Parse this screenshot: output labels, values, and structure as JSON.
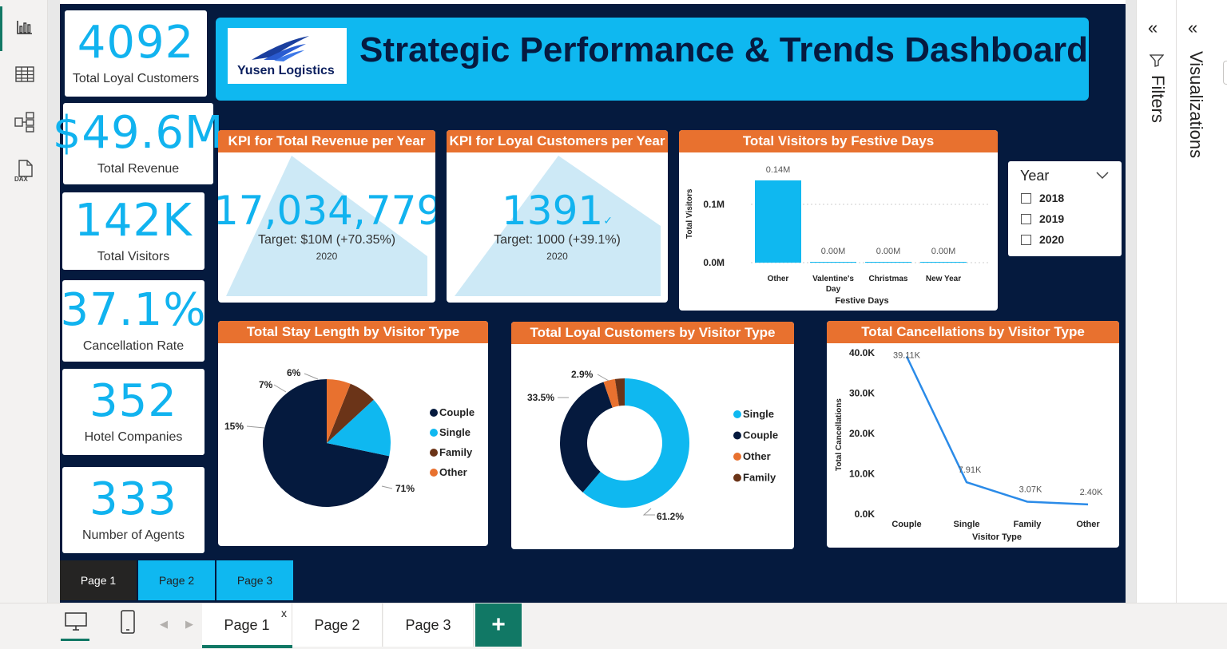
{
  "kpis": [
    {
      "value": "4092",
      "label": "Total Loyal Customers"
    },
    {
      "value": "$49.6M",
      "label": "Total Revenue"
    },
    {
      "value": "142K",
      "label": "Total Visitors"
    },
    {
      "value": "37.1%",
      "label": "Cancellation Rate"
    },
    {
      "value": "352",
      "label": "Hotel Companies"
    },
    {
      "value": "333",
      "label": "Number of Agents"
    }
  ],
  "header": {
    "logo_text": "Yusen Logistics",
    "title": "Strategic Performance & Trends Dashboard"
  },
  "kpi_revenue": {
    "title": "KPI for Total Revenue per Year",
    "value": "17,034,779.",
    "target": "Target: $10M (+70.35%)",
    "year": "2020"
  },
  "kpi_loyal": {
    "title": "KPI for Loyal Customers per Year",
    "value": "1391",
    "target": "Target: 1000 (+39.1%)",
    "year": "2020"
  },
  "festive": {
    "title": "Total Visitors by Festive Days",
    "ylabel": "Total Visitors",
    "xlabel": "Festive Days",
    "yticks": [
      "0.1M",
      "0.0M"
    ],
    "bar_labels": [
      "0.14M",
      "0.00M",
      "0.00M",
      "0.00M"
    ],
    "categories": [
      "Other",
      "Valentine's Day",
      "Christmas",
      "New Year"
    ]
  },
  "slicer": {
    "title": "Year",
    "options": [
      "2018",
      "2019",
      "2020"
    ]
  },
  "stay": {
    "title": "Total Stay Length by Visitor Type",
    "slice_labels": [
      "71%",
      "15%",
      "7%",
      "6%"
    ],
    "legend": [
      "Couple",
      "Single",
      "Family",
      "Other"
    ]
  },
  "loyal": {
    "title": "Total Loyal Customers by Visitor Type",
    "slice_labels": [
      "61.2%",
      "33.5%",
      "2.9%"
    ],
    "legend": [
      "Single",
      "Couple",
      "Other",
      "Family"
    ]
  },
  "cancel": {
    "title": "Total Cancellations by Visitor Type",
    "ylabel": "Total Cancellations",
    "xlabel": "Visitor Type",
    "yticks": [
      "40.0K",
      "30.0K",
      "20.0K",
      "10.0K",
      "0.0K"
    ],
    "point_labels": [
      "39.11K",
      "7.91K",
      "3.07K",
      "2.40K"
    ],
    "categories": [
      "Couple",
      "Single",
      "Family",
      "Other"
    ]
  },
  "report_pages": [
    "Page 1",
    "Page 2",
    "Page 3"
  ],
  "panes": {
    "filters": "Filters",
    "visualizations": "Visualizations"
  },
  "bottom_tabs": [
    "Page 1",
    "Page 2",
    "Page 3"
  ],
  "bottom": {
    "close_glyph": "x",
    "add_glyph": "+"
  },
  "colors": {
    "accent": "#0fb8f0",
    "navy": "#051a3e",
    "orange": "#e8712f",
    "brown": "#6b3418",
    "teal": "#117865"
  },
  "chart_data": [
    {
      "type": "bar",
      "title": "Total Visitors by Festive Days",
      "categories": [
        "Other",
        "Valentine's Day",
        "Christmas",
        "New Year"
      ],
      "values": [
        140000,
        0,
        0,
        0
      ],
      "xlabel": "Festive Days",
      "ylabel": "Total Visitors",
      "ylim": [
        0,
        140000
      ]
    },
    {
      "type": "pie",
      "title": "Total Stay Length by Visitor Type",
      "categories": [
        "Couple",
        "Single",
        "Family",
        "Other"
      ],
      "values": [
        71,
        15,
        7,
        6
      ]
    },
    {
      "type": "pie",
      "title": "Total Loyal Customers by Visitor Type",
      "categories": [
        "Single",
        "Couple",
        "Other",
        "Family"
      ],
      "values": [
        61.2,
        33.5,
        2.9,
        2.4
      ]
    },
    {
      "type": "line",
      "title": "Total Cancellations by Visitor Type",
      "categories": [
        "Couple",
        "Single",
        "Family",
        "Other"
      ],
      "values": [
        39110,
        7910,
        3070,
        2400
      ],
      "xlabel": "Visitor Type",
      "ylabel": "Total Cancellations",
      "ylim": [
        0,
        40000
      ]
    }
  ]
}
